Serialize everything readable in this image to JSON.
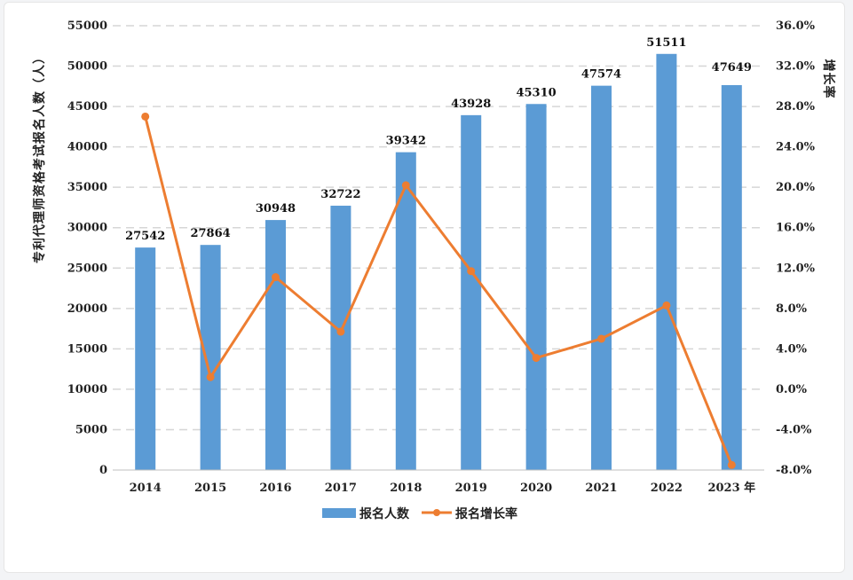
{
  "chart_data": {
    "type": "bar",
    "categories": [
      "2014",
      "2015",
      "2016",
      "2017",
      "2018",
      "2019",
      "2020",
      "2021",
      "2022",
      "2023 年"
    ],
    "series": [
      {
        "name": "报名人数",
        "kind": "bar",
        "axis": "left",
        "values": [
          27542,
          27864,
          30948,
          32722,
          39342,
          43928,
          45310,
          47574,
          51511,
          47649
        ],
        "color": "#5b9bd5",
        "data_labels": [
          "27542",
          "27864",
          "30948",
          "32722",
          "39342",
          "43928",
          "45310",
          "47574",
          "51511",
          "47649"
        ],
        "highlight_index": 9,
        "highlight_color": "#e8121b"
      },
      {
        "name": "报名增长率",
        "kind": "line",
        "axis": "right",
        "values": [
          27.0,
          1.2,
          11.1,
          5.7,
          20.2,
          11.7,
          3.1,
          5.0,
          8.3,
          -7.5
        ],
        "color": "#ed7d31"
      }
    ],
    "ylabel": "专利代理师资格考试报名人数（人）",
    "y2label": "增长率",
    "ylim": [
      0,
      55000
    ],
    "yticks": [
      "0",
      "5000",
      "10000",
      "15000",
      "20000",
      "25000",
      "30000",
      "35000",
      "40000",
      "45000",
      "50000",
      "55000"
    ],
    "y2lim": [
      -8.0,
      36.0
    ],
    "y2ticks": [
      "-8.0%",
      "-4.0%",
      "0.0%",
      "4.0%",
      "8.0%",
      "12.0%",
      "16.0%",
      "20.0%",
      "24.0%",
      "28.0%",
      "32.0%",
      "36.0%"
    ],
    "grid": true,
    "legend": "bottom-center"
  }
}
